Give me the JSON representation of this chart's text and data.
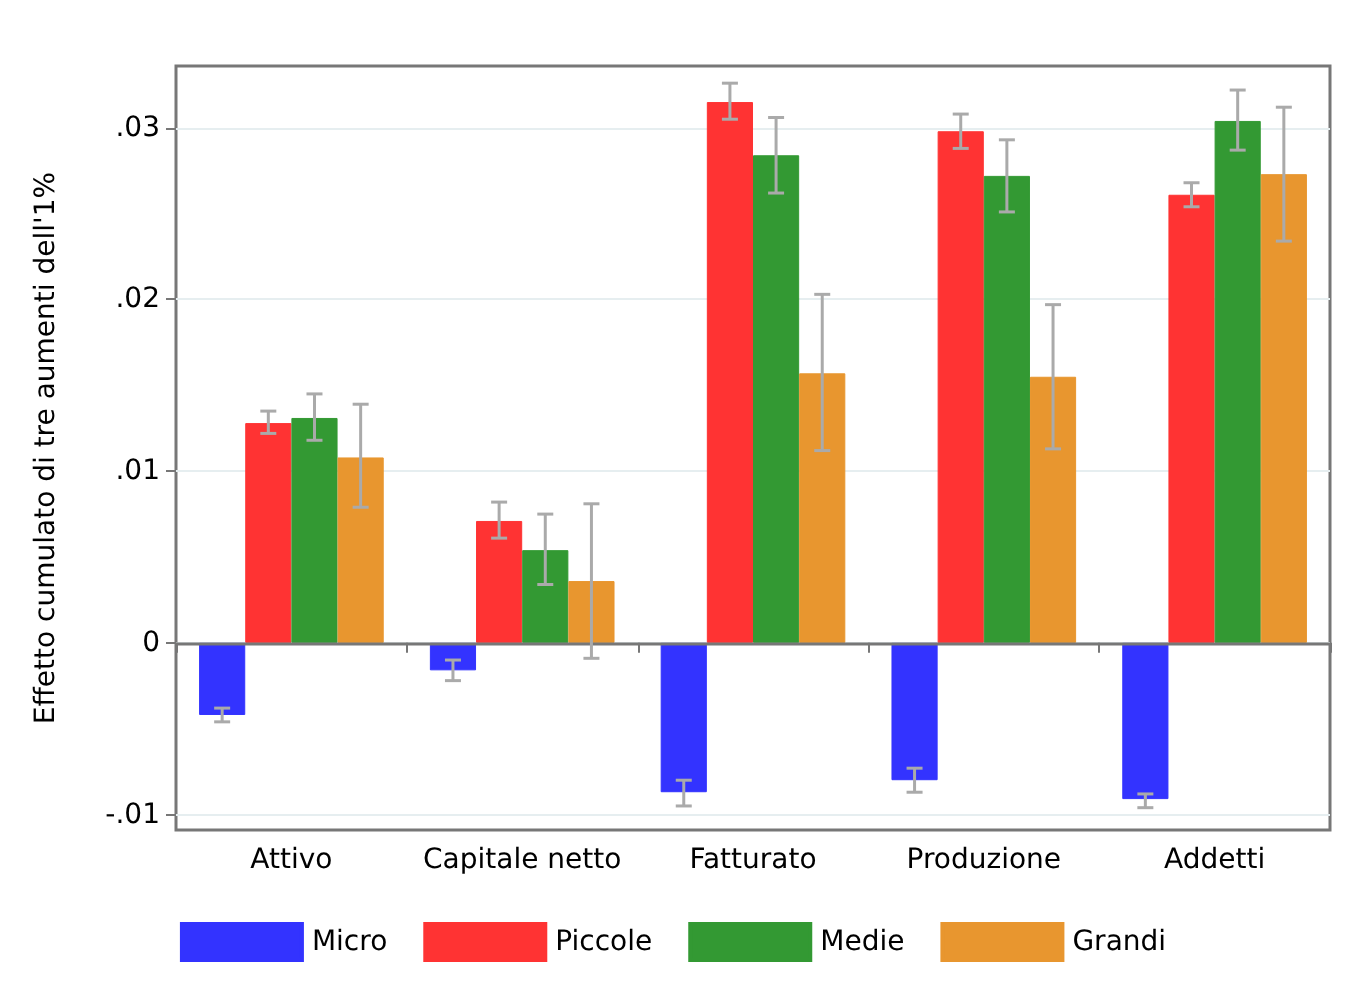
{
  "chart_data": {
    "type": "bar",
    "ylabel": "Effetto cumulato di tre aumenti dell'1%",
    "categories": [
      "Attivo",
      "Capitale netto",
      "Fatturato",
      "Produzione",
      "Addetti"
    ],
    "series": [
      {
        "name": "Micro",
        "color": "#3333ff",
        "values": [
          -0.0042,
          -0.0016,
          -0.0087,
          -0.008,
          -0.0091
        ],
        "errors": [
          [
            -0.0046,
            -0.0038
          ],
          [
            -0.0022,
            -0.001
          ],
          [
            -0.0095,
            -0.008
          ],
          [
            -0.0087,
            -0.0073
          ],
          [
            -0.0096,
            -0.0088
          ]
        ]
      },
      {
        "name": "Piccole",
        "color": "#ff3333",
        "values": [
          0.0128,
          0.0071,
          0.0315,
          0.0298,
          0.0261
        ],
        "errors": [
          [
            0.0122,
            0.0135
          ],
          [
            0.0061,
            0.0082
          ],
          [
            0.0305,
            0.0326
          ],
          [
            0.0288,
            0.0308
          ],
          [
            0.0254,
            0.0268
          ]
        ]
      },
      {
        "name": "Medie",
        "color": "#339933",
        "values": [
          0.0131,
          0.0054,
          0.0284,
          0.0272,
          0.0304
        ],
        "errors": [
          [
            0.0118,
            0.0145
          ],
          [
            0.0034,
            0.0075
          ],
          [
            0.0262,
            0.0306
          ],
          [
            0.0251,
            0.0293
          ],
          [
            0.0287,
            0.0322
          ]
        ]
      },
      {
        "name": "Grandi",
        "color": "#e8962f",
        "values": [
          0.0108,
          0.0036,
          0.0157,
          0.0155,
          0.0273
        ],
        "errors": [
          [
            0.0079,
            0.0139
          ],
          [
            -0.0009,
            0.0081
          ],
          [
            0.0112,
            0.0203
          ],
          [
            0.0113,
            0.0197
          ],
          [
            0.0234,
            0.0312
          ]
        ]
      }
    ],
    "ylim": [
      -0.0109,
      0.0336
    ],
    "yticks": [
      {
        "value": -0.01,
        "label": "-.01"
      },
      {
        "value": 0,
        "label": "0"
      },
      {
        "value": 0.01,
        "label": ".01"
      },
      {
        "value": 0.02,
        "label": ".02"
      },
      {
        "value": 0.03,
        "label": ".03"
      }
    ],
    "grid": "y",
    "legend": "bottom"
  }
}
